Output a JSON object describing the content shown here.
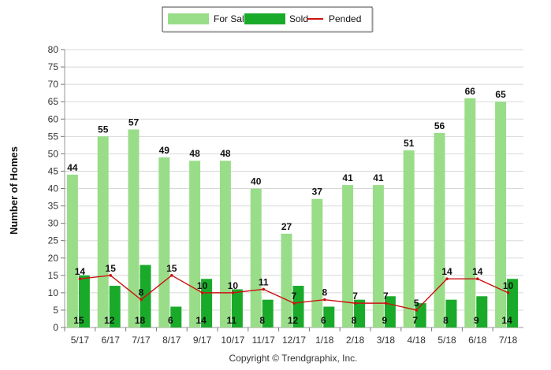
{
  "chart_data": {
    "type": "bar",
    "categories": [
      "5/17",
      "6/17",
      "7/17",
      "8/17",
      "9/17",
      "10/17",
      "11/17",
      "12/17",
      "1/18",
      "2/18",
      "3/18",
      "4/18",
      "5/18",
      "6/18",
      "7/18"
    ],
    "series": [
      {
        "name": "For Sale",
        "kind": "bar",
        "color": "#99dd88",
        "values": [
          44,
          55,
          57,
          49,
          48,
          48,
          40,
          27,
          37,
          41,
          41,
          51,
          56,
          66,
          65
        ]
      },
      {
        "name": "Sold",
        "kind": "bar",
        "color": "#1aaa2a",
        "values": [
          15,
          12,
          18,
          6,
          14,
          11,
          8,
          12,
          6,
          8,
          9,
          7,
          8,
          9,
          14
        ]
      },
      {
        "name": "Pended",
        "kind": "line",
        "color": "#cc1111",
        "values": [
          14,
          15,
          8,
          15,
          10,
          10,
          11,
          7,
          8,
          7,
          7,
          5,
          14,
          14,
          10
        ]
      }
    ],
    "title": "",
    "xlabel": "",
    "ylabel": "Number of Homes",
    "ylim": [
      0,
      80
    ],
    "yticks": [
      0,
      5,
      10,
      15,
      20,
      25,
      30,
      35,
      40,
      45,
      50,
      55,
      60,
      65,
      70,
      75,
      80
    ],
    "grid": true,
    "legend_position": "top-center"
  },
  "footer": {
    "copyright": "Copyright © Trendgraphix, Inc."
  }
}
